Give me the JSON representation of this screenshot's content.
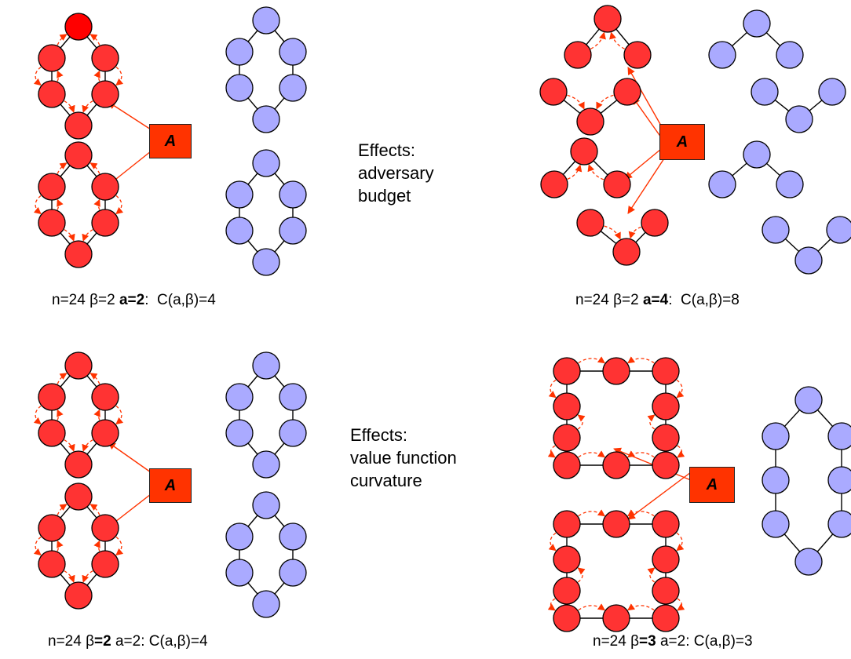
{
  "panels": [
    {
      "caption": {
        "n": "n=24",
        "beta": "β=2",
        "beta_bold": false,
        "a": "a=2",
        "a_bold": true,
        "colon": ":",
        "value": "C(a,β)=4"
      }
    },
    {
      "caption": {
        "n": "n=24",
        "beta": "β=2",
        "beta_bold": false,
        "a": "a=4",
        "a_bold": true,
        "colon": ":",
        "value": "C(a,β)=8"
      }
    },
    {
      "caption": {
        "n": "n=24",
        "beta_prefix": "β",
        "beta_bold_part": "=2",
        "a": "a=2",
        "value": "C(a,β)=4"
      }
    },
    {
      "caption": {
        "n": "n=24",
        "beta_prefix": "β",
        "beta_bold_part": "=3",
        "a": "a=2",
        "value": "C(a,β)=3"
      }
    }
  ],
  "effects_top": {
    "line1": "Effects:",
    "line2": "adversary",
    "line3": "budget"
  },
  "effects_bottom": {
    "line1": "Effects:",
    "line2": "value function",
    "line3": "curvature"
  },
  "adversary_label": "A",
  "colors": {
    "attacked": "#ff3333",
    "highlight": "#ff0000",
    "defender": "#aaaaff",
    "arrow": "#ff3300",
    "adversary": "#ff3300"
  }
}
